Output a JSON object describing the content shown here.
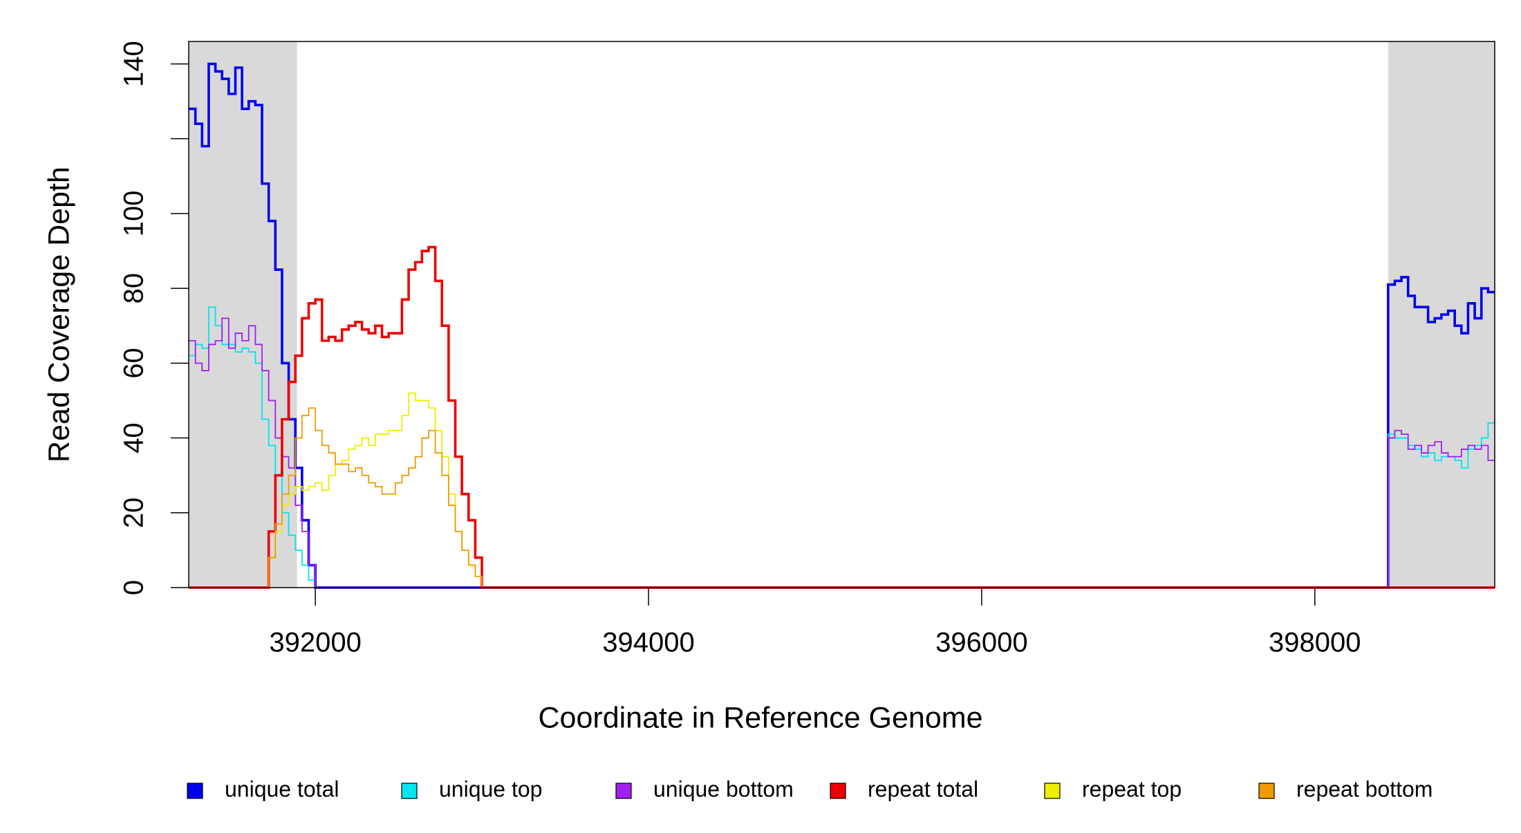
{
  "chart_data": {
    "type": "step",
    "xlabel": "Coordinate in Reference Genome",
    "ylabel": "Read Coverage Depth",
    "xlim": [
      391240,
      399080
    ],
    "ylim": [
      0,
      146
    ],
    "xticks": [
      392000,
      394000,
      396000,
      398000
    ],
    "yticks": [
      0,
      20,
      40,
      60,
      80,
      100,
      {
        "value": 120,
        "label": null
      },
      140
    ],
    "shaded_regions": [
      [
        391240,
        391890
      ],
      [
        398440,
        399080
      ]
    ],
    "shade_color": "#d9d9d9",
    "x": [
      391240,
      391280,
      391320,
      391360,
      391400,
      391440,
      391480,
      391520,
      391560,
      391600,
      391640,
      391680,
      391720,
      391760,
      391800,
      391840,
      391880,
      391920,
      391960,
      392000,
      392040,
      392080,
      392120,
      392160,
      392200,
      392240,
      392280,
      392320,
      392360,
      392400,
      392440,
      392480,
      392520,
      392560,
      392600,
      392640,
      392680,
      392720,
      392760,
      392800,
      392840,
      392880,
      392920,
      392960,
      393000,
      393040,
      398440,
      398480,
      398520,
      398560,
      398600,
      398640,
      398680,
      398720,
      398760,
      398800,
      398840,
      398880,
      398920,
      398960,
      399000,
      399040
    ],
    "series": [
      {
        "name": "unique total",
        "color": "#0000ee",
        "width": 2,
        "values": [
          128,
          124,
          118,
          140,
          138,
          136,
          132,
          139,
          128,
          130,
          129,
          108,
          98,
          85,
          60,
          45,
          32,
          18,
          6,
          0,
          0,
          0,
          0,
          0,
          0,
          0,
          0,
          0,
          0,
          0,
          0,
          0,
          0,
          0,
          0,
          0,
          0,
          0,
          0,
          0,
          0,
          0,
          0,
          0,
          0,
          0,
          81,
          82,
          83,
          78,
          75,
          75,
          71,
          72,
          73,
          74,
          70,
          68,
          76,
          72,
          80,
          79
        ]
      },
      {
        "name": "unique top",
        "color": "#00e5ee",
        "width": 1,
        "values": [
          62,
          65,
          64,
          75,
          70,
          65,
          65,
          63,
          64,
          63,
          60,
          45,
          38,
          30,
          20,
          14,
          10,
          6,
          2,
          0,
          0,
          0,
          0,
          0,
          0,
          0,
          0,
          0,
          0,
          0,
          0,
          0,
          0,
          0,
          0,
          0,
          0,
          0,
          0,
          0,
          0,
          0,
          0,
          0,
          0,
          0,
          41,
          40,
          40,
          38,
          37,
          35,
          36,
          34,
          35,
          35,
          34,
          32,
          37,
          38,
          40,
          44
        ]
      },
      {
        "name": "unique bottom",
        "color": "#a020f0",
        "width": 1,
        "values": [
          66,
          60,
          58,
          65,
          66,
          72,
          64,
          68,
          66,
          70,
          65,
          58,
          50,
          40,
          35,
          32,
          22,
          15,
          6,
          0,
          0,
          0,
          0,
          0,
          0,
          0,
          0,
          0,
          0,
          0,
          0,
          0,
          0,
          0,
          0,
          0,
          0,
          0,
          0,
          0,
          0,
          0,
          0,
          0,
          0,
          0,
          40,
          42,
          41,
          37,
          38,
          36,
          38,
          39,
          36,
          35,
          35,
          37,
          38,
          37,
          38,
          34
        ]
      },
      {
        "name": "repeat total",
        "color": "#ee0000",
        "width": 2,
        "values": [
          0,
          0,
          0,
          0,
          0,
          0,
          0,
          0,
          0,
          0,
          0,
          0,
          15,
          30,
          45,
          55,
          62,
          72,
          76,
          77,
          66,
          67,
          66,
          69,
          70,
          71,
          69,
          68,
          70,
          67,
          68,
          68,
          77,
          85,
          87,
          90,
          91,
          82,
          70,
          50,
          35,
          25,
          18,
          8,
          0,
          0,
          0,
          0,
          0,
          0,
          0,
          0,
          0,
          0,
          0,
          0,
          0,
          0,
          0,
          0,
          0,
          0
        ]
      },
      {
        "name": "repeat top",
        "color": "#eeee00",
        "width": 1,
        "values": [
          0,
          0,
          0,
          0,
          0,
          0,
          0,
          0,
          0,
          0,
          0,
          0,
          8,
          15,
          22,
          25,
          27,
          26,
          27,
          28,
          26,
          30,
          33,
          34,
          37,
          38,
          40,
          38,
          41,
          41,
          42,
          42,
          46,
          52,
          50,
          50,
          48,
          42,
          35,
          25,
          15,
          10,
          6,
          3,
          0,
          0,
          0,
          0,
          0,
          0,
          0,
          0,
          0,
          0,
          0,
          0,
          0,
          0,
          0,
          0,
          0,
          0
        ]
      },
      {
        "name": "repeat bottom",
        "color": "#ee9a00",
        "width": 1,
        "values": [
          0,
          0,
          0,
          0,
          0,
          0,
          0,
          0,
          0,
          0,
          0,
          0,
          8,
          17,
          25,
          30,
          40,
          46,
          48,
          42,
          38,
          36,
          33,
          33,
          31,
          32,
          30,
          28,
          27,
          25,
          25,
          28,
          30,
          32,
          35,
          40,
          42,
          36,
          30,
          22,
          15,
          10,
          6,
          3,
          0,
          0,
          0,
          0,
          0,
          0,
          0,
          0,
          0,
          0,
          0,
          0,
          0,
          0,
          0,
          0,
          0,
          0
        ]
      }
    ]
  }
}
